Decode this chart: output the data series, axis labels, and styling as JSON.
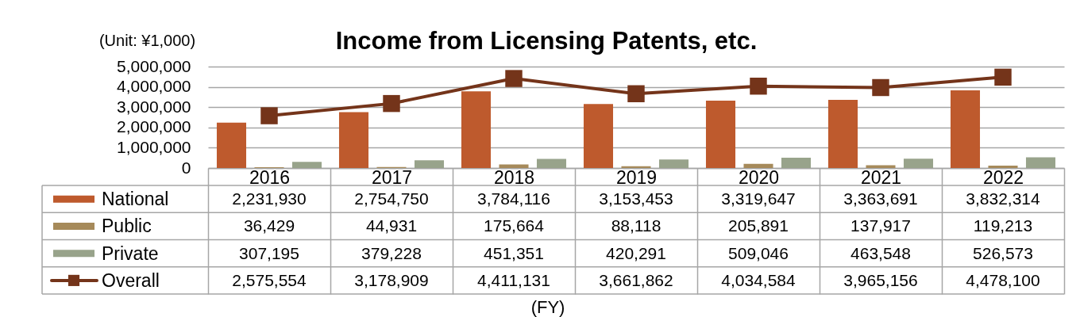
{
  "chart_data": {
    "type": "bar",
    "title": "Income from Licensing Patents, etc.",
    "ylabel": "(Unit: ¥1,000)",
    "annotations": [
      "(FY)"
    ],
    "categories": [
      "2016",
      "2017",
      "2018",
      "2019",
      "2020",
      "2021",
      "2022"
    ],
    "series": [
      {
        "name": "National",
        "color": "#be5a2d",
        "values": [
          2231930,
          2754750,
          3784116,
          3153453,
          3319647,
          3363691,
          3832314
        ],
        "value_labels": [
          "2,231,930",
          "2,754,750",
          "3,784,116",
          "3,153,453",
          "3,319,647",
          "3,363,691",
          "3,832,314"
        ]
      },
      {
        "name": "Public",
        "color": "#a68a5a",
        "values": [
          36429,
          44931,
          175664,
          88118,
          205891,
          137917,
          119213
        ],
        "value_labels": [
          "36,429",
          "44,931",
          "175,664",
          "88,118",
          "205,891",
          "137,917",
          "119,213"
        ]
      },
      {
        "name": "Private",
        "color": "#98a38b",
        "values": [
          307195,
          379228,
          451351,
          420291,
          509046,
          463548,
          526573
        ],
        "value_labels": [
          "307,195",
          "379,228",
          "451,351",
          "420,291",
          "509,046",
          "463,548",
          "526,573"
        ]
      },
      {
        "name": "Overall",
        "type": "line",
        "color": "#74341a",
        "values": [
          2575554,
          3178909,
          4411131,
          3661862,
          4034584,
          3965156,
          4478100
        ],
        "value_labels": [
          "2,575,554",
          "3,178,909",
          "4,411,131",
          "3,661,862",
          "4,034,584",
          "3,965,156",
          "4,478,100"
        ]
      }
    ],
    "ylim": [
      0,
      5000000
    ],
    "yticks": [
      0,
      {
        "value": 1000000,
        "label": "1,000,000"
      },
      {
        "value": 2000000,
        "label": "2,000,000"
      },
      {
        "value": 3000000,
        "label": "3,000,000"
      },
      {
        "value": 4000000,
        "label": "4,000,000"
      },
      {
        "value": 5000000,
        "label": "5,000,000"
      }
    ],
    "grid": "y",
    "legend": "bottom left",
    "marker": "square"
  }
}
